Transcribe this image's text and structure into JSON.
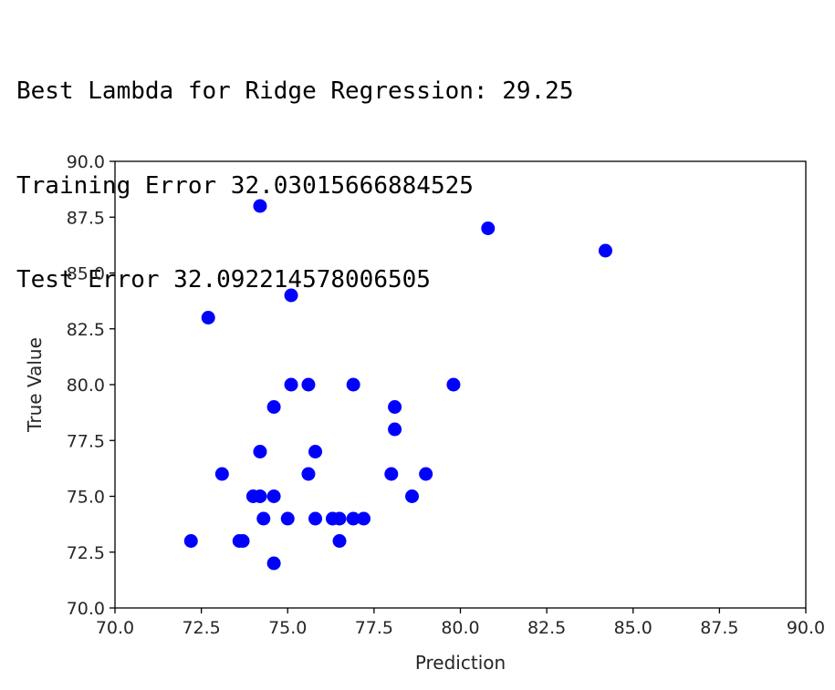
{
  "output": {
    "lines": [
      "Best Lambda for Ridge Regression: 29.25",
      "Training Error 32.03015666884525",
      "Test Error 32.092214578006505"
    ]
  },
  "chart_data": {
    "type": "scatter",
    "title": "",
    "xlabel": "Prediction",
    "ylabel": "True Value",
    "xlim": [
      70.0,
      90.0
    ],
    "ylim": [
      70.0,
      90.0
    ],
    "xticks": [
      "70.0",
      "72.5",
      "75.0",
      "77.5",
      "80.0",
      "82.5",
      "85.0",
      "87.5",
      "90.0"
    ],
    "yticks": [
      "70.0",
      "72.5",
      "75.0",
      "77.5",
      "80.0",
      "82.5",
      "85.0",
      "87.5",
      "90.0"
    ],
    "grid": false,
    "marker_color": "#0000ff",
    "points": [
      [
        74.2,
        88.0
      ],
      [
        80.8,
        87.0
      ],
      [
        84.2,
        86.0
      ],
      [
        75.1,
        84.0
      ],
      [
        72.7,
        83.0
      ],
      [
        75.1,
        80.0
      ],
      [
        75.6,
        80.0
      ],
      [
        76.9,
        80.0
      ],
      [
        79.8,
        80.0
      ],
      [
        74.6,
        79.0
      ],
      [
        78.1,
        79.0
      ],
      [
        78.1,
        78.0
      ],
      [
        74.2,
        77.0
      ],
      [
        75.8,
        77.0
      ],
      [
        73.1,
        76.0
      ],
      [
        75.6,
        76.0
      ],
      [
        78.0,
        76.0
      ],
      [
        79.0,
        76.0
      ],
      [
        74.0,
        75.0
      ],
      [
        74.2,
        75.0
      ],
      [
        74.6,
        75.0
      ],
      [
        78.6,
        75.0
      ],
      [
        74.3,
        74.0
      ],
      [
        75.0,
        74.0
      ],
      [
        75.8,
        74.0
      ],
      [
        76.3,
        74.0
      ],
      [
        76.5,
        74.0
      ],
      [
        76.9,
        74.0
      ],
      [
        77.2,
        74.0
      ],
      [
        72.2,
        73.0
      ],
      [
        73.6,
        73.0
      ],
      [
        73.7,
        73.0
      ],
      [
        76.5,
        73.0
      ],
      [
        74.6,
        72.0
      ]
    ]
  }
}
